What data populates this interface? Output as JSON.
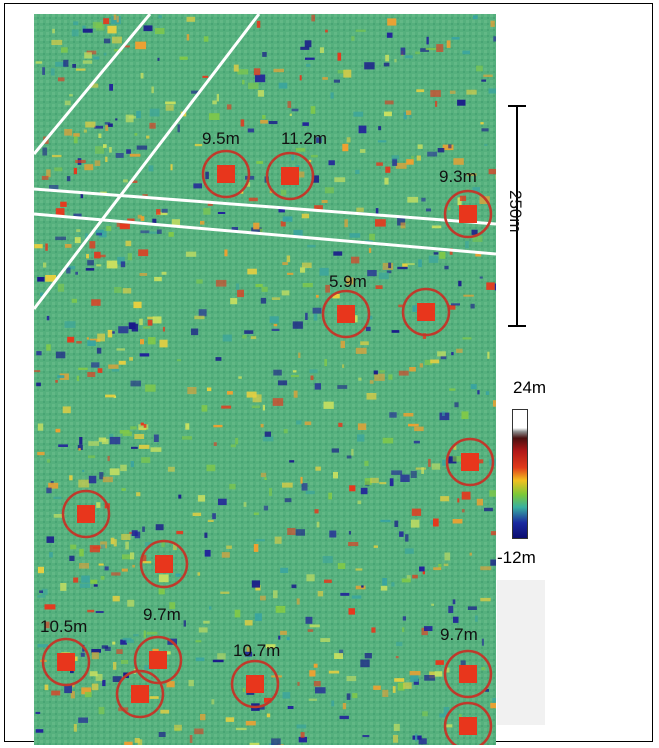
{
  "scale_bar": {
    "label": "250m"
  },
  "colorbar": {
    "max_label": "24m",
    "min_label": "-12m"
  },
  "heights": [
    {
      "id": "a",
      "label": "9.5m"
    },
    {
      "id": "b",
      "label": "11.2m"
    },
    {
      "id": "c",
      "label": "9.3m"
    },
    {
      "id": "d",
      "label": "5.9m"
    },
    {
      "id": "e",
      "label": "10.5m"
    },
    {
      "id": "f",
      "label": "9.7m"
    },
    {
      "id": "g",
      "label": "10.7m"
    },
    {
      "id": "h",
      "label": "9.7m"
    }
  ],
  "colors": {
    "ring": "#c0392b",
    "ground": "#55b07d",
    "low": "#1a1a8a",
    "high": "#e8361c",
    "road": "#ffffff"
  }
}
